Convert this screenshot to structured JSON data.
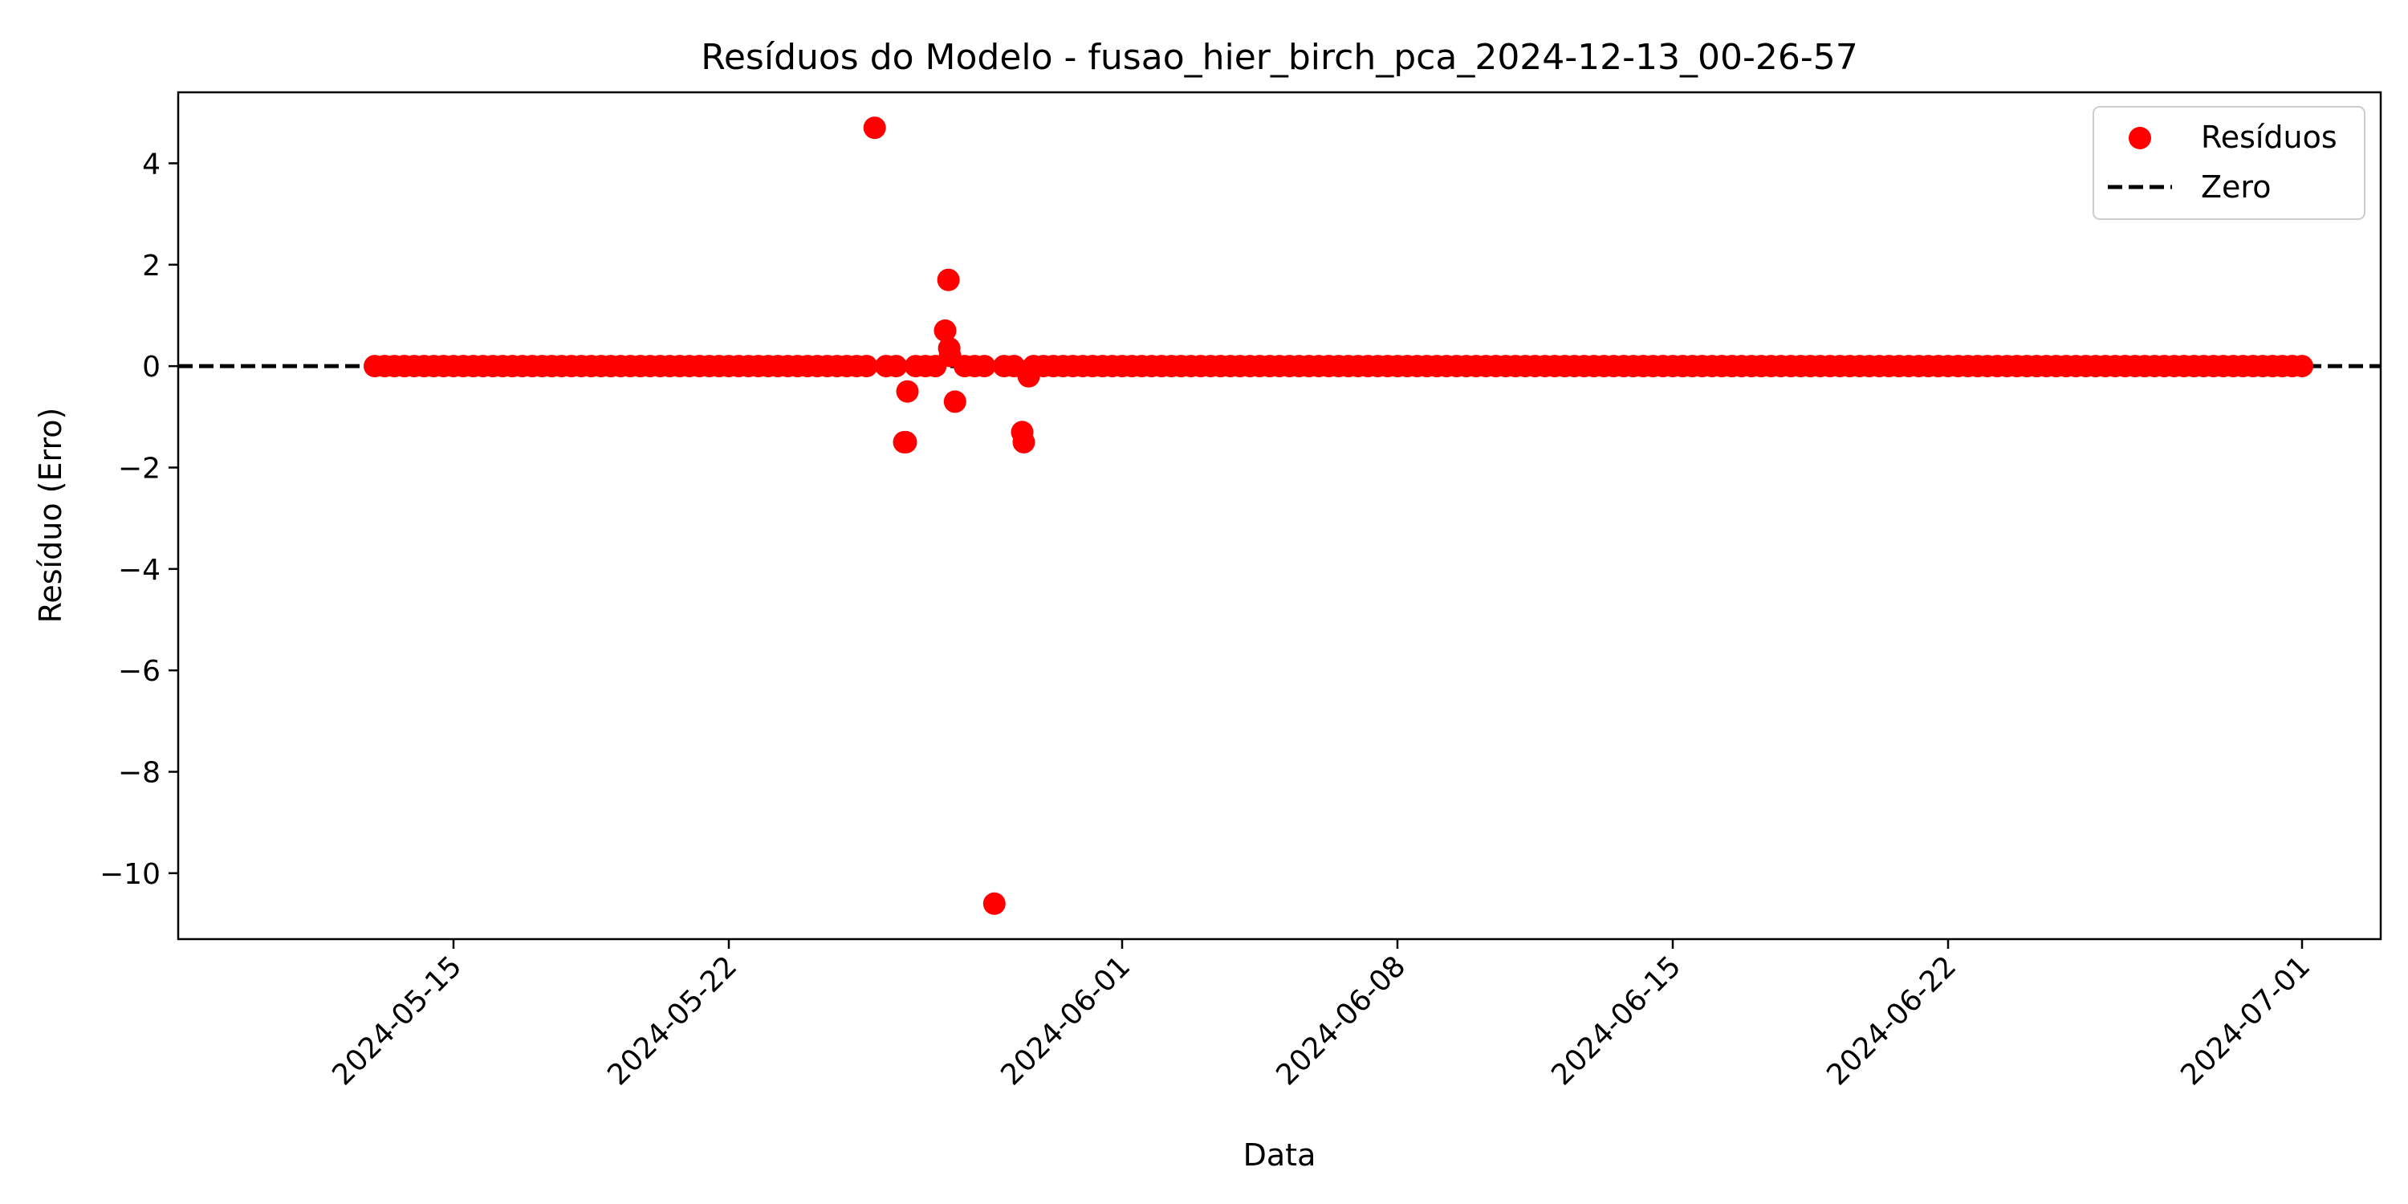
{
  "chart_data": {
    "type": "scatter",
    "title": "Resíduos do Modelo - fusao_hier_birch_pca_2024-12-13_00-26-57",
    "xlabel": "Data",
    "ylabel": "Resíduo (Erro)",
    "xlim": [
      "2024-05-08",
      "2024-07-03"
    ],
    "ylim": [
      -11.3,
      5.4
    ],
    "x_scale": "date",
    "x_ticks": [
      "2024-05-15",
      "2024-05-22",
      "2024-06-01",
      "2024-06-08",
      "2024-06-15",
      "2024-06-22",
      "2024-07-01"
    ],
    "y_ticks": [
      4,
      2,
      0,
      -2,
      -4,
      -6,
      -8,
      -10
    ],
    "y_tick_labels": [
      "4",
      "2",
      "0",
      "−2",
      "−4",
      "−6",
      "−8",
      "−10"
    ],
    "grid": false,
    "legend": {
      "placement": "top-right"
    },
    "colors": {
      "points": "#ff0000",
      "zero_line": "#000000"
    },
    "reference_line": {
      "name": "Zero",
      "y": 0,
      "style": "dashed"
    },
    "series": [
      {
        "name": "Resíduos",
        "points": [
          [
            "2024-05-13 00:00",
            0
          ],
          [
            "2024-05-13 06:00",
            0
          ],
          [
            "2024-05-13 12:00",
            0
          ],
          [
            "2024-05-13 18:00",
            0
          ],
          [
            "2024-05-14 00:00",
            0
          ],
          [
            "2024-05-14 06:00",
            0
          ],
          [
            "2024-05-14 12:00",
            0
          ],
          [
            "2024-05-14 18:00",
            0
          ],
          [
            "2024-05-15 00:00",
            0
          ],
          [
            "2024-05-15 06:00",
            0
          ],
          [
            "2024-05-15 12:00",
            0
          ],
          [
            "2024-05-15 18:00",
            0
          ],
          [
            "2024-05-16 00:00",
            0
          ],
          [
            "2024-05-16 06:00",
            0
          ],
          [
            "2024-05-16 12:00",
            0
          ],
          [
            "2024-05-16 18:00",
            0
          ],
          [
            "2024-05-17 00:00",
            0
          ],
          [
            "2024-05-17 06:00",
            0
          ],
          [
            "2024-05-17 12:00",
            0
          ],
          [
            "2024-05-17 18:00",
            0
          ],
          [
            "2024-05-18 00:00",
            0
          ],
          [
            "2024-05-18 06:00",
            0
          ],
          [
            "2024-05-18 12:00",
            0
          ],
          [
            "2024-05-18 18:00",
            0
          ],
          [
            "2024-05-19 00:00",
            0
          ],
          [
            "2024-05-19 06:00",
            0
          ],
          [
            "2024-05-19 12:00",
            0
          ],
          [
            "2024-05-19 18:00",
            0
          ],
          [
            "2024-05-20 00:00",
            0
          ],
          [
            "2024-05-20 06:00",
            0
          ],
          [
            "2024-05-20 12:00",
            0
          ],
          [
            "2024-05-20 18:00",
            0
          ],
          [
            "2024-05-21 00:00",
            0
          ],
          [
            "2024-05-21 06:00",
            0
          ],
          [
            "2024-05-21 12:00",
            0
          ],
          [
            "2024-05-21 18:00",
            0
          ],
          [
            "2024-05-22 00:00",
            0
          ],
          [
            "2024-05-22 06:00",
            0
          ],
          [
            "2024-05-22 12:00",
            0
          ],
          [
            "2024-05-22 18:00",
            0
          ],
          [
            "2024-05-23 00:00",
            0
          ],
          [
            "2024-05-23 06:00",
            0
          ],
          [
            "2024-05-23 12:00",
            0
          ],
          [
            "2024-05-23 18:00",
            0
          ],
          [
            "2024-05-24 00:00",
            0
          ],
          [
            "2024-05-24 06:00",
            0
          ],
          [
            "2024-05-24 12:00",
            0
          ],
          [
            "2024-05-24 18:00",
            0
          ],
          [
            "2024-05-25 00:00",
            0
          ],
          [
            "2024-05-25 06:00",
            0
          ],
          [
            "2024-05-25 12:00",
            0
          ],
          [
            "2024-05-25 17:00",
            4.7
          ],
          [
            "2024-05-26 00:00",
            0
          ],
          [
            "2024-05-26 06:00",
            0
          ],
          [
            "2024-05-26 11:00",
            -1.5
          ],
          [
            "2024-05-26 12:00",
            -1.5
          ],
          [
            "2024-05-26 13:00",
            -0.5
          ],
          [
            "2024-05-26 18:00",
            0
          ],
          [
            "2024-05-27 00:00",
            0
          ],
          [
            "2024-05-27 06:00",
            0
          ],
          [
            "2024-05-27 12:00",
            0.7
          ],
          [
            "2024-05-27 14:00",
            1.7
          ],
          [
            "2024-05-27 14:30",
            0.35
          ],
          [
            "2024-05-27 15:00",
            0.2
          ],
          [
            "2024-05-27 18:00",
            -0.7
          ],
          [
            "2024-05-28 00:00",
            0
          ],
          [
            "2024-05-28 06:00",
            0
          ],
          [
            "2024-05-28 12:00",
            0
          ],
          [
            "2024-05-28 18:00",
            -10.6
          ],
          [
            "2024-05-29 00:00",
            0
          ],
          [
            "2024-05-29 06:00",
            0
          ],
          [
            "2024-05-29 11:00",
            -1.3
          ],
          [
            "2024-05-29 12:00",
            -1.5
          ],
          [
            "2024-05-29 14:00",
            -0.1
          ],
          [
            "2024-05-29 15:00",
            -0.2
          ],
          [
            "2024-05-29 18:00",
            0
          ],
          [
            "2024-05-30 00:00",
            0
          ],
          [
            "2024-05-30 06:00",
            0
          ],
          [
            "2024-05-30 12:00",
            0
          ],
          [
            "2024-05-30 18:00",
            0
          ],
          [
            "2024-05-31 00:00",
            0
          ],
          [
            "2024-05-31 06:00",
            0
          ],
          [
            "2024-05-31 12:00",
            0
          ],
          [
            "2024-05-31 18:00",
            0
          ],
          [
            "2024-06-01 00:00",
            0
          ],
          [
            "2024-06-01 06:00",
            0
          ],
          [
            "2024-06-01 12:00",
            0
          ],
          [
            "2024-06-01 18:00",
            0
          ],
          [
            "2024-06-02 00:00",
            0
          ],
          [
            "2024-06-02 06:00",
            0
          ],
          [
            "2024-06-02 12:00",
            0
          ],
          [
            "2024-06-02 18:00",
            0
          ],
          [
            "2024-06-03 00:00",
            0
          ],
          [
            "2024-06-03 06:00",
            0
          ],
          [
            "2024-06-03 12:00",
            0
          ],
          [
            "2024-06-03 18:00",
            0
          ],
          [
            "2024-06-04 00:00",
            0
          ],
          [
            "2024-06-04 06:00",
            0
          ],
          [
            "2024-06-04 12:00",
            0
          ],
          [
            "2024-06-04 18:00",
            0
          ],
          [
            "2024-06-05 00:00",
            0
          ],
          [
            "2024-06-05 06:00",
            0
          ],
          [
            "2024-06-05 12:00",
            0
          ],
          [
            "2024-06-05 18:00",
            0
          ],
          [
            "2024-06-06 00:00",
            0
          ],
          [
            "2024-06-06 06:00",
            0
          ],
          [
            "2024-06-06 12:00",
            0
          ],
          [
            "2024-06-06 18:00",
            0
          ],
          [
            "2024-06-07 00:00",
            0
          ],
          [
            "2024-06-07 06:00",
            0
          ],
          [
            "2024-06-07 12:00",
            0
          ],
          [
            "2024-06-07 18:00",
            0
          ],
          [
            "2024-06-08 00:00",
            0
          ],
          [
            "2024-06-08 06:00",
            0
          ],
          [
            "2024-06-08 12:00",
            0
          ],
          [
            "2024-06-08 18:00",
            0
          ],
          [
            "2024-06-09 00:00",
            0
          ],
          [
            "2024-06-09 06:00",
            0
          ],
          [
            "2024-06-09 12:00",
            0
          ],
          [
            "2024-06-09 18:00",
            0
          ],
          [
            "2024-06-10 00:00",
            0
          ],
          [
            "2024-06-10 06:00",
            0
          ],
          [
            "2024-06-10 12:00",
            0
          ],
          [
            "2024-06-10 18:00",
            0
          ],
          [
            "2024-06-11 00:00",
            0
          ],
          [
            "2024-06-11 06:00",
            0
          ],
          [
            "2024-06-11 12:00",
            0
          ],
          [
            "2024-06-11 18:00",
            0
          ],
          [
            "2024-06-12 00:00",
            0
          ],
          [
            "2024-06-12 06:00",
            0
          ],
          [
            "2024-06-12 12:00",
            0
          ],
          [
            "2024-06-12 18:00",
            0
          ],
          [
            "2024-06-13 00:00",
            0
          ],
          [
            "2024-06-13 06:00",
            0
          ],
          [
            "2024-06-13 12:00",
            0
          ],
          [
            "2024-06-13 18:00",
            0
          ],
          [
            "2024-06-14 00:00",
            0
          ],
          [
            "2024-06-14 06:00",
            0
          ],
          [
            "2024-06-14 12:00",
            0
          ],
          [
            "2024-06-14 18:00",
            0
          ],
          [
            "2024-06-15 00:00",
            0
          ],
          [
            "2024-06-15 06:00",
            0
          ],
          [
            "2024-06-15 12:00",
            0
          ],
          [
            "2024-06-15 18:00",
            0
          ],
          [
            "2024-06-16 00:00",
            0
          ],
          [
            "2024-06-16 06:00",
            0
          ],
          [
            "2024-06-16 12:00",
            0
          ],
          [
            "2024-06-16 18:00",
            0
          ],
          [
            "2024-06-17 00:00",
            0
          ],
          [
            "2024-06-17 06:00",
            0
          ],
          [
            "2024-06-17 12:00",
            0
          ],
          [
            "2024-06-17 18:00",
            0
          ],
          [
            "2024-06-18 00:00",
            0
          ],
          [
            "2024-06-18 06:00",
            0
          ],
          [
            "2024-06-18 12:00",
            0
          ],
          [
            "2024-06-18 18:00",
            0
          ],
          [
            "2024-06-19 00:00",
            0
          ],
          [
            "2024-06-19 06:00",
            0
          ],
          [
            "2024-06-19 12:00",
            0
          ],
          [
            "2024-06-19 18:00",
            0
          ],
          [
            "2024-06-20 00:00",
            0
          ],
          [
            "2024-06-20 06:00",
            0
          ],
          [
            "2024-06-20 12:00",
            0
          ],
          [
            "2024-06-20 18:00",
            0
          ],
          [
            "2024-06-21 00:00",
            0
          ],
          [
            "2024-06-21 06:00",
            0
          ],
          [
            "2024-06-21 12:00",
            0
          ],
          [
            "2024-06-21 18:00",
            0
          ],
          [
            "2024-06-22 00:00",
            0
          ],
          [
            "2024-06-22 06:00",
            0
          ],
          [
            "2024-06-22 12:00",
            0
          ],
          [
            "2024-06-22 18:00",
            0
          ],
          [
            "2024-06-23 00:00",
            0
          ],
          [
            "2024-06-23 06:00",
            0
          ],
          [
            "2024-06-23 12:00",
            0
          ],
          [
            "2024-06-23 18:00",
            0
          ],
          [
            "2024-06-24 00:00",
            0
          ],
          [
            "2024-06-24 06:00",
            0
          ],
          [
            "2024-06-24 12:00",
            0
          ],
          [
            "2024-06-24 18:00",
            0
          ],
          [
            "2024-06-25 00:00",
            0
          ],
          [
            "2024-06-25 06:00",
            0
          ],
          [
            "2024-06-25 12:00",
            0
          ],
          [
            "2024-06-25 18:00",
            0
          ],
          [
            "2024-06-26 00:00",
            0
          ],
          [
            "2024-06-26 06:00",
            0
          ],
          [
            "2024-06-26 12:00",
            0
          ],
          [
            "2024-06-26 18:00",
            0
          ],
          [
            "2024-06-27 00:00",
            0
          ],
          [
            "2024-06-27 06:00",
            0
          ],
          [
            "2024-06-27 12:00",
            0
          ],
          [
            "2024-06-27 18:00",
            0
          ],
          [
            "2024-06-28 00:00",
            0
          ],
          [
            "2024-06-28 06:00",
            0
          ],
          [
            "2024-06-28 12:00",
            0
          ],
          [
            "2024-06-28 18:00",
            0
          ],
          [
            "2024-06-29 00:00",
            0
          ],
          [
            "2024-06-29 06:00",
            0
          ],
          [
            "2024-06-29 12:00",
            0
          ],
          [
            "2024-06-29 18:00",
            0
          ],
          [
            "2024-06-30 00:00",
            0
          ],
          [
            "2024-06-30 06:00",
            0
          ],
          [
            "2024-06-30 12:00",
            0
          ],
          [
            "2024-06-30 18:00",
            0
          ],
          [
            "2024-07-01 00:00",
            0
          ]
        ]
      }
    ]
  }
}
